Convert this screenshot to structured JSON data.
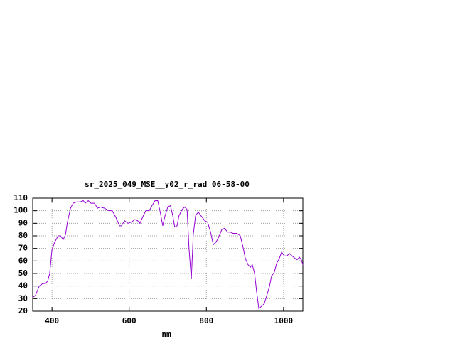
{
  "chart_data": {
    "type": "line",
    "title": "sr_2025_049_MSE__y02_r_rad 06-58-00",
    "x_label": "nm",
    "xlim": [
      350,
      1050
    ],
    "xticks": [
      400,
      600,
      800,
      1000
    ],
    "ylim": [
      20,
      110
    ],
    "yticks": [
      20,
      30,
      40,
      50,
      60,
      70,
      80,
      90,
      100,
      110
    ],
    "grid": true,
    "series": [
      {
        "color": "#9400d3",
        "x": [
          350,
          357,
          367,
          376,
          383,
          389,
          394,
          400,
          407,
          416,
          422,
          429,
          435,
          440,
          448,
          455,
          464,
          473,
          481,
          486,
          494,
          501,
          510,
          518,
          525,
          536,
          547,
          556,
          565,
          575,
          580,
          588,
          597,
          606,
          615,
          622,
          628,
          635,
          643,
          652,
          659,
          667,
          674,
          681,
          687,
          692,
          700,
          707,
          713,
          718,
          724,
          729,
          737,
          744,
          750,
          755,
          761,
          766,
          772,
          779,
          786,
          796,
          803,
          810,
          818,
          825,
          832,
          840,
          847,
          855,
          862,
          869,
          879,
          888,
          895,
          901,
          908,
          914,
          919,
          925,
          930,
          936,
          943,
          950,
          958,
          963,
          969,
          976,
          982,
          989,
          995,
          1002,
          1009,
          1015,
          1022,
          1030,
          1035,
          1041,
          1046,
          1050
        ],
        "values": [
          31,
          32.5,
          40,
          42,
          42,
          44,
          50,
          69,
          75,
          80,
          80,
          77,
          81,
          91,
          102,
          106,
          107,
          107,
          108,
          106,
          108,
          106,
          106,
          102,
          103,
          102,
          100,
          100,
          95,
          88,
          88,
          92,
          90,
          91,
          93,
          92,
          90,
          95,
          100,
          100,
          104,
          108,
          108,
          98,
          88,
          95,
          103,
          104,
          96,
          87,
          88,
          96,
          101,
          103,
          101,
          70,
          45.5,
          81,
          96,
          99,
          96,
          92,
          91,
          84,
          73,
          75,
          79,
          85,
          86,
          83,
          83,
          82,
          82,
          80,
          71,
          62,
          57,
          55,
          57,
          50,
          36,
          22,
          24,
          26,
          34,
          39,
          48,
          51,
          58,
          62,
          67,
          64,
          64,
          66,
          64,
          62,
          61,
          63,
          61,
          57
        ]
      }
    ]
  }
}
